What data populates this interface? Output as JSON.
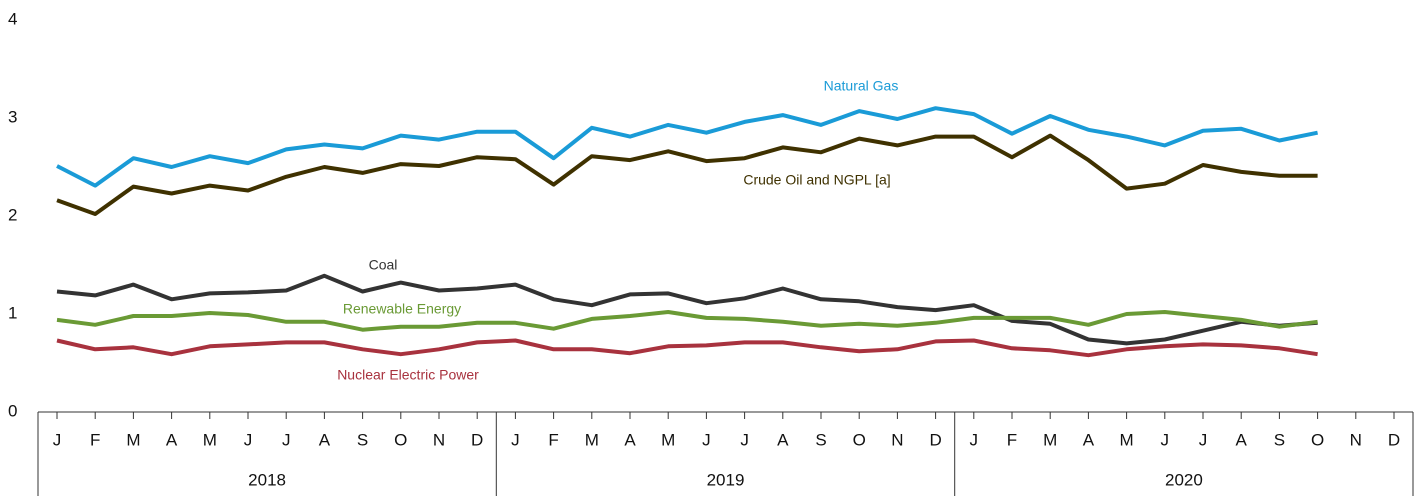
{
  "chart_data": {
    "type": "line",
    "categories": [
      "J",
      "F",
      "M",
      "A",
      "M",
      "J",
      "J",
      "A",
      "S",
      "O",
      "N",
      "D",
      "J",
      "F",
      "M",
      "A",
      "M",
      "J",
      "J",
      "A",
      "S",
      "O",
      "N",
      "D",
      "J",
      "F",
      "M",
      "A",
      "M",
      "J",
      "J",
      "A",
      "S",
      "O",
      "N",
      "D"
    ],
    "years": [
      "2018",
      "2019",
      "2020"
    ],
    "ylim": [
      0,
      4
    ],
    "yticks": [
      0,
      1,
      2,
      3,
      4
    ],
    "grid": false,
    "series": [
      {
        "name": "Natural Gas",
        "color": "#1a9bd7",
        "values": [
          2.51,
          2.31,
          2.59,
          2.5,
          2.61,
          2.54,
          2.68,
          2.73,
          2.69,
          2.82,
          2.78,
          2.86,
          2.86,
          2.59,
          2.9,
          2.81,
          2.93,
          2.85,
          2.96,
          3.03,
          2.93,
          3.07,
          2.99,
          3.1,
          3.04,
          2.84,
          3.02,
          2.88,
          2.81,
          2.72,
          2.87,
          2.89,
          2.77,
          2.85,
          null,
          null
        ]
      },
      {
        "name": "Crude Oil and NGPL [a]",
        "color": "#3f3100",
        "values": [
          2.16,
          2.02,
          2.3,
          2.23,
          2.31,
          2.26,
          2.4,
          2.5,
          2.44,
          2.53,
          2.51,
          2.6,
          2.58,
          2.32,
          2.61,
          2.57,
          2.66,
          2.56,
          2.59,
          2.7,
          2.65,
          2.79,
          2.72,
          2.81,
          2.81,
          2.6,
          2.82,
          2.57,
          2.28,
          2.33,
          2.52,
          2.45,
          2.41,
          2.41,
          null,
          null
        ]
      },
      {
        "name": "Coal",
        "color": "#333333",
        "values": [
          1.23,
          1.19,
          1.3,
          1.15,
          1.21,
          1.22,
          1.24,
          1.39,
          1.23,
          1.32,
          1.24,
          1.26,
          1.3,
          1.15,
          1.09,
          1.2,
          1.21,
          1.11,
          1.16,
          1.26,
          1.15,
          1.13,
          1.07,
          1.04,
          1.09,
          0.93,
          0.9,
          0.74,
          0.7,
          0.74,
          0.83,
          0.92,
          0.88,
          0.91,
          null,
          null
        ]
      },
      {
        "name": "Renewable Energy",
        "color": "#6a9a35",
        "values": [
          0.94,
          0.89,
          0.98,
          0.98,
          1.01,
          0.99,
          0.92,
          0.92,
          0.84,
          0.87,
          0.87,
          0.91,
          0.91,
          0.85,
          0.95,
          0.98,
          1.02,
          0.96,
          0.95,
          0.92,
          0.88,
          0.9,
          0.88,
          0.91,
          0.96,
          0.96,
          0.96,
          0.89,
          1.0,
          1.02,
          0.98,
          0.94,
          0.87,
          0.92,
          null,
          null
        ]
      },
      {
        "name": "Nuclear Electric Power",
        "color": "#a8323e",
        "values": [
          0.73,
          0.64,
          0.66,
          0.59,
          0.67,
          0.69,
          0.71,
          0.71,
          0.64,
          0.59,
          0.64,
          0.71,
          0.73,
          0.64,
          0.64,
          0.6,
          0.67,
          0.68,
          0.71,
          0.71,
          0.66,
          0.62,
          0.64,
          0.72,
          0.73,
          0.65,
          0.63,
          0.58,
          0.64,
          0.67,
          0.69,
          0.68,
          0.65,
          0.59,
          null,
          null
        ]
      }
    ]
  }
}
